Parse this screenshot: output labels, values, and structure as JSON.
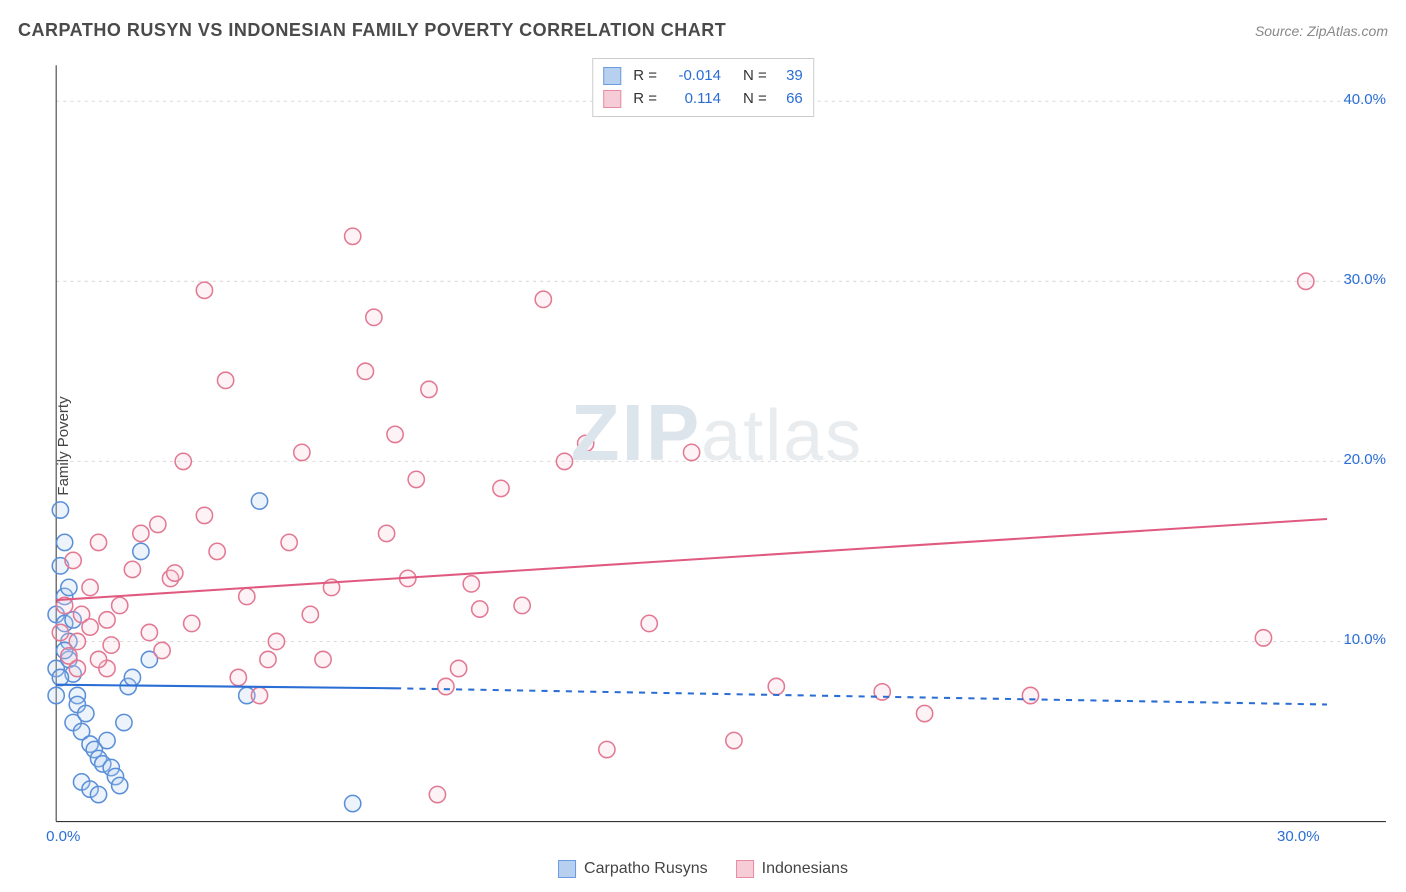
{
  "header": {
    "title": "CARPATHO RUSYN VS INDONESIAN FAMILY POVERTY CORRELATION CHART",
    "source": "Source: ZipAtlas.com"
  },
  "watermark": {
    "zip": "ZIP",
    "atlas": "atlas"
  },
  "axes": {
    "y_label": "Family Poverty",
    "x_min": 0,
    "x_max": 30,
    "y_min": 0,
    "y_max": 42,
    "x_ticks": [
      {
        "v": 0,
        "label": "0.0%"
      },
      {
        "v": 30,
        "label": "30.0%"
      }
    ],
    "y_ticks": [
      {
        "v": 10,
        "label": "10.0%"
      },
      {
        "v": 20,
        "label": "20.0%"
      },
      {
        "v": 30,
        "label": "30.0%"
      },
      {
        "v": 40,
        "label": "40.0%"
      }
    ],
    "grid_color": "#d9d9d9",
    "axis_color": "#333333",
    "tick_label_color": "#2a6dd4",
    "background_color": "#ffffff"
  },
  "chart": {
    "type": "scatter",
    "marker_radius": 8,
    "marker_stroke_width": 1.5,
    "marker_fill_opacity": 0.25,
    "series": [
      {
        "name": "Carpatho Rusyns",
        "swatch_fill": "#b8d0f0",
        "swatch_stroke": "#6a9be0",
        "stroke": "#5a8fd8",
        "fill": "#b8d0f0",
        "R": "-0.014",
        "N": "39",
        "trend": {
          "x1": 0,
          "y1": 7.6,
          "x2": 8.0,
          "y2": 7.4,
          "dash_x2": 30,
          "dash_y2": 6.5,
          "color": "#2a6dd4",
          "width": 2
        },
        "points": [
          [
            0.0,
            11.5
          ],
          [
            0.1,
            17.3
          ],
          [
            0.1,
            14.2
          ],
          [
            0.2,
            15.5
          ],
          [
            0.2,
            12.5
          ],
          [
            0.3,
            13.0
          ],
          [
            0.3,
            9.0
          ],
          [
            0.0,
            8.5
          ],
          [
            0.4,
            8.2
          ],
          [
            0.5,
            7.0
          ],
          [
            0.5,
            6.5
          ],
          [
            0.4,
            5.5
          ],
          [
            0.6,
            5.0
          ],
          [
            0.7,
            6.0
          ],
          [
            0.8,
            4.3
          ],
          [
            0.9,
            4.0
          ],
          [
            1.0,
            3.5
          ],
          [
            1.1,
            3.2
          ],
          [
            1.2,
            4.5
          ],
          [
            1.3,
            3.0
          ],
          [
            0.2,
            11.0
          ],
          [
            1.4,
            2.5
          ],
          [
            1.5,
            2.0
          ],
          [
            0.6,
            2.2
          ],
          [
            0.8,
            1.8
          ],
          [
            1.0,
            1.5
          ],
          [
            1.6,
            5.5
          ],
          [
            1.7,
            7.5
          ],
          [
            1.8,
            8.0
          ],
          [
            0.3,
            10.0
          ],
          [
            0.2,
            9.5
          ],
          [
            0.1,
            8.0
          ],
          [
            0.0,
            7.0
          ],
          [
            2.0,
            15.0
          ],
          [
            2.2,
            9.0
          ],
          [
            4.8,
            17.8
          ],
          [
            4.5,
            7.0
          ],
          [
            7.0,
            1.0
          ],
          [
            0.4,
            11.2
          ]
        ]
      },
      {
        "name": "Indonesians",
        "swatch_fill": "#f6cdd7",
        "swatch_stroke": "#e88ba3",
        "stroke": "#e37893",
        "fill": "#f6cdd7",
        "R": "0.114",
        "N": "66",
        "trend": {
          "x1": 0,
          "y1": 12.3,
          "x2": 30,
          "y2": 16.8,
          "color": "#e05a80",
          "width": 2
        },
        "points": [
          [
            0.1,
            10.5
          ],
          [
            0.3,
            9.2
          ],
          [
            0.4,
            14.5
          ],
          [
            0.5,
            10.0
          ],
          [
            0.6,
            11.5
          ],
          [
            0.8,
            13.0
          ],
          [
            1.0,
            15.5
          ],
          [
            1.2,
            8.5
          ],
          [
            1.3,
            9.8
          ],
          [
            1.5,
            12.0
          ],
          [
            1.8,
            14.0
          ],
          [
            2.0,
            16.0
          ],
          [
            2.2,
            10.5
          ],
          [
            2.4,
            16.5
          ],
          [
            2.5,
            9.5
          ],
          [
            2.7,
            13.5
          ],
          [
            3.0,
            20.0
          ],
          [
            3.2,
            11.0
          ],
          [
            3.5,
            29.5
          ],
          [
            3.8,
            15.0
          ],
          [
            4.0,
            24.5
          ],
          [
            4.3,
            8.0
          ],
          [
            4.5,
            12.5
          ],
          [
            4.8,
            7.0
          ],
          [
            5.0,
            9.0
          ],
          [
            5.2,
            10.0
          ],
          [
            5.5,
            15.5
          ],
          [
            5.8,
            20.5
          ],
          [
            6.0,
            11.5
          ],
          [
            6.3,
            9.0
          ],
          [
            6.5,
            13.0
          ],
          [
            7.0,
            32.5
          ],
          [
            7.3,
            25.0
          ],
          [
            7.5,
            28.0
          ],
          [
            7.8,
            16.0
          ],
          [
            8.0,
            21.5
          ],
          [
            8.3,
            13.5
          ],
          [
            8.5,
            19.0
          ],
          [
            8.8,
            24.0
          ],
          [
            9.0,
            1.5
          ],
          [
            9.2,
            7.5
          ],
          [
            9.5,
            8.5
          ],
          [
            9.8,
            13.2
          ],
          [
            10.0,
            11.8
          ],
          [
            10.5,
            18.5
          ],
          [
            11.0,
            12.0
          ],
          [
            11.5,
            29.0
          ],
          [
            12.0,
            20.0
          ],
          [
            12.5,
            21.0
          ],
          [
            13.0,
            4.0
          ],
          [
            14.0,
            11.0
          ],
          [
            15.0,
            20.5
          ],
          [
            16.0,
            4.5
          ],
          [
            17.0,
            7.5
          ],
          [
            19.5,
            7.2
          ],
          [
            20.5,
            6.0
          ],
          [
            23.0,
            7.0
          ],
          [
            28.5,
            10.2
          ],
          [
            29.5,
            30.0
          ],
          [
            0.2,
            12.0
          ],
          [
            0.5,
            8.5
          ],
          [
            0.8,
            10.8
          ],
          [
            1.0,
            9.0
          ],
          [
            1.2,
            11.2
          ],
          [
            2.8,
            13.8
          ],
          [
            3.5,
            17.0
          ]
        ]
      }
    ],
    "legend_bottom": [
      {
        "label": "Carpatho Rusyns",
        "fill": "#b8d0f0",
        "stroke": "#6a9be0"
      },
      {
        "label": "Indonesians",
        "fill": "#f6cdd7",
        "stroke": "#e88ba3"
      }
    ]
  }
}
